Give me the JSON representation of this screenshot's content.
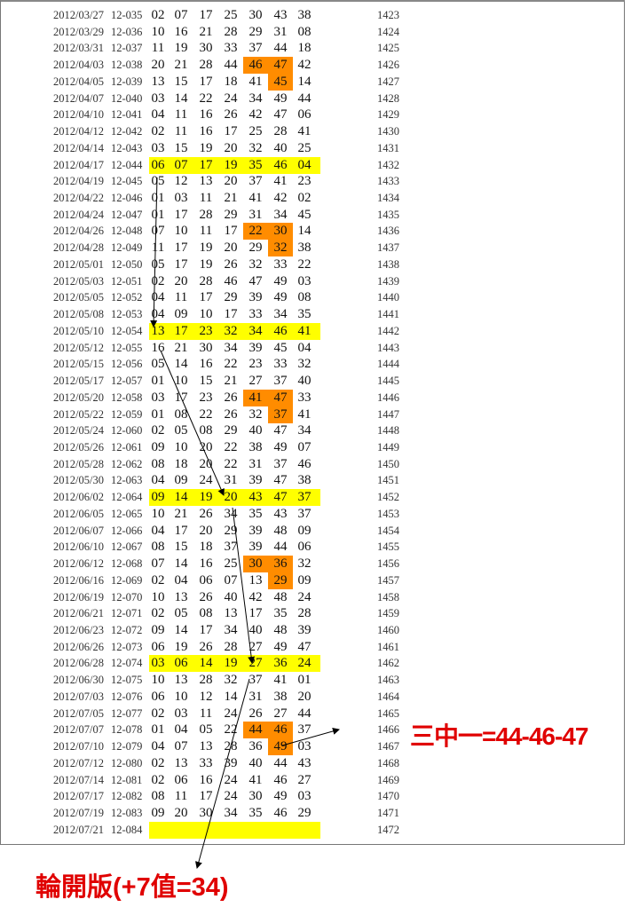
{
  "colors": {
    "highlight_row": "#ffff00",
    "highlight_cell": "#ff8c00",
    "annotation": "#e00000"
  },
  "rows": [
    {
      "date": "2012/03/27",
      "issue": "12-035",
      "nums": [
        "02",
        "07",
        "17",
        "25",
        "30",
        "43",
        "38"
      ],
      "seq": "1423"
    },
    {
      "date": "2012/03/29",
      "issue": "12-036",
      "nums": [
        "10",
        "16",
        "21",
        "28",
        "29",
        "31",
        "08"
      ],
      "seq": "1424"
    },
    {
      "date": "2012/03/31",
      "issue": "12-037",
      "nums": [
        "11",
        "19",
        "30",
        "33",
        "37",
        "44",
        "18"
      ],
      "seq": "1425"
    },
    {
      "date": "2012/04/03",
      "issue": "12-038",
      "nums": [
        "20",
        "21",
        "28",
        "44",
        "46",
        "47",
        "42"
      ],
      "seq": "1426",
      "orange": [
        4,
        5
      ]
    },
    {
      "date": "2012/04/05",
      "issue": "12-039",
      "nums": [
        "13",
        "15",
        "17",
        "18",
        "41",
        "45",
        "14"
      ],
      "seq": "1427",
      "orange": [
        5
      ]
    },
    {
      "date": "2012/04/07",
      "issue": "12-040",
      "nums": [
        "03",
        "14",
        "22",
        "24",
        "34",
        "49",
        "44"
      ],
      "seq": "1428"
    },
    {
      "date": "2012/04/10",
      "issue": "12-041",
      "nums": [
        "04",
        "11",
        "16",
        "26",
        "42",
        "47",
        "06"
      ],
      "seq": "1429"
    },
    {
      "date": "2012/04/12",
      "issue": "12-042",
      "nums": [
        "02",
        "11",
        "16",
        "17",
        "25",
        "28",
        "41"
      ],
      "seq": "1430"
    },
    {
      "date": "2012/04/14",
      "issue": "12-043",
      "nums": [
        "03",
        "15",
        "19",
        "20",
        "32",
        "40",
        "25"
      ],
      "seq": "1431"
    },
    {
      "date": "2012/04/17",
      "issue": "12-044",
      "nums": [
        "06",
        "07",
        "17",
        "19",
        "35",
        "46",
        "04"
      ],
      "seq": "1432",
      "yellow": true
    },
    {
      "date": "2012/04/19",
      "issue": "12-045",
      "nums": [
        "05",
        "12",
        "13",
        "20",
        "37",
        "41",
        "23"
      ],
      "seq": "1433"
    },
    {
      "date": "2012/04/22",
      "issue": "12-046",
      "nums": [
        "01",
        "03",
        "11",
        "21",
        "41",
        "42",
        "02"
      ],
      "seq": "1434"
    },
    {
      "date": "2012/04/24",
      "issue": "12-047",
      "nums": [
        "01",
        "17",
        "28",
        "29",
        "31",
        "34",
        "45"
      ],
      "seq": "1435"
    },
    {
      "date": "2012/04/26",
      "issue": "12-048",
      "nums": [
        "07",
        "10",
        "11",
        "17",
        "22",
        "30",
        "14"
      ],
      "seq": "1436",
      "orange": [
        4,
        5
      ]
    },
    {
      "date": "2012/04/28",
      "issue": "12-049",
      "nums": [
        "11",
        "17",
        "19",
        "20",
        "29",
        "32",
        "38"
      ],
      "seq": "1437",
      "orange": [
        5
      ]
    },
    {
      "date": "2012/05/01",
      "issue": "12-050",
      "nums": [
        "05",
        "17",
        "19",
        "26",
        "32",
        "33",
        "22"
      ],
      "seq": "1438"
    },
    {
      "date": "2012/05/03",
      "issue": "12-051",
      "nums": [
        "02",
        "20",
        "28",
        "46",
        "47",
        "49",
        "03"
      ],
      "seq": "1439"
    },
    {
      "date": "2012/05/05",
      "issue": "12-052",
      "nums": [
        "04",
        "11",
        "17",
        "29",
        "39",
        "49",
        "08"
      ],
      "seq": "1440"
    },
    {
      "date": "2012/05/08",
      "issue": "12-053",
      "nums": [
        "04",
        "09",
        "10",
        "17",
        "33",
        "34",
        "35"
      ],
      "seq": "1441"
    },
    {
      "date": "2012/05/10",
      "issue": "12-054",
      "nums": [
        "13",
        "17",
        "23",
        "32",
        "34",
        "46",
        "41"
      ],
      "seq": "1442",
      "yellow": true
    },
    {
      "date": "2012/05/12",
      "issue": "12-055",
      "nums": [
        "16",
        "21",
        "30",
        "34",
        "39",
        "45",
        "04"
      ],
      "seq": "1443"
    },
    {
      "date": "2012/05/15",
      "issue": "12-056",
      "nums": [
        "05",
        "14",
        "16",
        "22",
        "23",
        "33",
        "32"
      ],
      "seq": "1444"
    },
    {
      "date": "2012/05/17",
      "issue": "12-057",
      "nums": [
        "01",
        "10",
        "15",
        "21",
        "27",
        "37",
        "40"
      ],
      "seq": "1445"
    },
    {
      "date": "2012/05/20",
      "issue": "12-058",
      "nums": [
        "03",
        "17",
        "23",
        "26",
        "41",
        "47",
        "33"
      ],
      "seq": "1446",
      "orange": [
        4,
        5
      ]
    },
    {
      "date": "2012/05/22",
      "issue": "12-059",
      "nums": [
        "01",
        "08",
        "22",
        "26",
        "32",
        "37",
        "41"
      ],
      "seq": "1447",
      "orange": [
        5
      ]
    },
    {
      "date": "2012/05/24",
      "issue": "12-060",
      "nums": [
        "02",
        "05",
        "08",
        "29",
        "40",
        "47",
        "34"
      ],
      "seq": "1448"
    },
    {
      "date": "2012/05/26",
      "issue": "12-061",
      "nums": [
        "09",
        "10",
        "20",
        "22",
        "38",
        "49",
        "07"
      ],
      "seq": "1449"
    },
    {
      "date": "2012/05/28",
      "issue": "12-062",
      "nums": [
        "08",
        "18",
        "20",
        "22",
        "31",
        "37",
        "46"
      ],
      "seq": "1450"
    },
    {
      "date": "2012/05/30",
      "issue": "12-063",
      "nums": [
        "04",
        "09",
        "24",
        "31",
        "39",
        "47",
        "38"
      ],
      "seq": "1451"
    },
    {
      "date": "2012/06/02",
      "issue": "12-064",
      "nums": [
        "09",
        "14",
        "19",
        "20",
        "43",
        "47",
        "37"
      ],
      "seq": "1452",
      "yellow": true
    },
    {
      "date": "2012/06/05",
      "issue": "12-065",
      "nums": [
        "10",
        "21",
        "26",
        "34",
        "35",
        "43",
        "37"
      ],
      "seq": "1453"
    },
    {
      "date": "2012/06/07",
      "issue": "12-066",
      "nums": [
        "04",
        "17",
        "20",
        "29",
        "39",
        "48",
        "09"
      ],
      "seq": "1454"
    },
    {
      "date": "2012/06/10",
      "issue": "12-067",
      "nums": [
        "08",
        "15",
        "18",
        "37",
        "39",
        "44",
        "06"
      ],
      "seq": "1455"
    },
    {
      "date": "2012/06/12",
      "issue": "12-068",
      "nums": [
        "07",
        "14",
        "16",
        "25",
        "30",
        "36",
        "32"
      ],
      "seq": "1456",
      "orange": [
        4,
        5
      ]
    },
    {
      "date": "2012/06/16",
      "issue": "12-069",
      "nums": [
        "02",
        "04",
        "06",
        "07",
        "13",
        "29",
        "09"
      ],
      "seq": "1457",
      "orange": [
        5
      ]
    },
    {
      "date": "2012/06/19",
      "issue": "12-070",
      "nums": [
        "10",
        "13",
        "26",
        "40",
        "42",
        "48",
        "24"
      ],
      "seq": "1458"
    },
    {
      "date": "2012/06/21",
      "issue": "12-071",
      "nums": [
        "02",
        "05",
        "08",
        "13",
        "17",
        "35",
        "28"
      ],
      "seq": "1459"
    },
    {
      "date": "2012/06/23",
      "issue": "12-072",
      "nums": [
        "09",
        "14",
        "17",
        "34",
        "40",
        "48",
        "39"
      ],
      "seq": "1460"
    },
    {
      "date": "2012/06/26",
      "issue": "12-073",
      "nums": [
        "06",
        "19",
        "26",
        "28",
        "27",
        "49",
        "47"
      ],
      "seq": "1461"
    },
    {
      "date": "2012/06/28",
      "issue": "12-074",
      "nums": [
        "03",
        "06",
        "14",
        "19",
        "27",
        "36",
        "24"
      ],
      "seq": "1462",
      "yellow": true
    },
    {
      "date": "2012/06/30",
      "issue": "12-075",
      "nums": [
        "10",
        "13",
        "28",
        "32",
        "37",
        "41",
        "01"
      ],
      "seq": "1463"
    },
    {
      "date": "2012/07/03",
      "issue": "12-076",
      "nums": [
        "06",
        "10",
        "12",
        "14",
        "31",
        "38",
        "20"
      ],
      "seq": "1464"
    },
    {
      "date": "2012/07/05",
      "issue": "12-077",
      "nums": [
        "02",
        "03",
        "11",
        "24",
        "26",
        "27",
        "44"
      ],
      "seq": "1465"
    },
    {
      "date": "2012/07/07",
      "issue": "12-078",
      "nums": [
        "01",
        "04",
        "05",
        "22",
        "44",
        "46",
        "37"
      ],
      "seq": "1466",
      "orange": [
        4,
        5
      ]
    },
    {
      "date": "2012/07/10",
      "issue": "12-079",
      "nums": [
        "04",
        "07",
        "13",
        "28",
        "36",
        "49",
        "03"
      ],
      "seq": "1467",
      "orange": [
        5
      ]
    },
    {
      "date": "2012/07/12",
      "issue": "12-080",
      "nums": [
        "02",
        "13",
        "33",
        "39",
        "40",
        "44",
        "43"
      ],
      "seq": "1468"
    },
    {
      "date": "2012/07/14",
      "issue": "12-081",
      "nums": [
        "02",
        "06",
        "16",
        "24",
        "41",
        "46",
        "27"
      ],
      "seq": "1469"
    },
    {
      "date": "2012/07/17",
      "issue": "12-082",
      "nums": [
        "08",
        "11",
        "17",
        "24",
        "30",
        "49",
        "03"
      ],
      "seq": "1470"
    },
    {
      "date": "2012/07/19",
      "issue": "12-083",
      "nums": [
        "09",
        "20",
        "30",
        "34",
        "35",
        "46",
        "29"
      ],
      "seq": "1471"
    },
    {
      "date": "2012/07/21",
      "issue": "12-084",
      "nums": [],
      "seq": "1472",
      "yellow": true
    }
  ],
  "annotations": {
    "three_hit_one": "三中一=44-46-47",
    "rotation": "輪開版(+7值=34)"
  }
}
